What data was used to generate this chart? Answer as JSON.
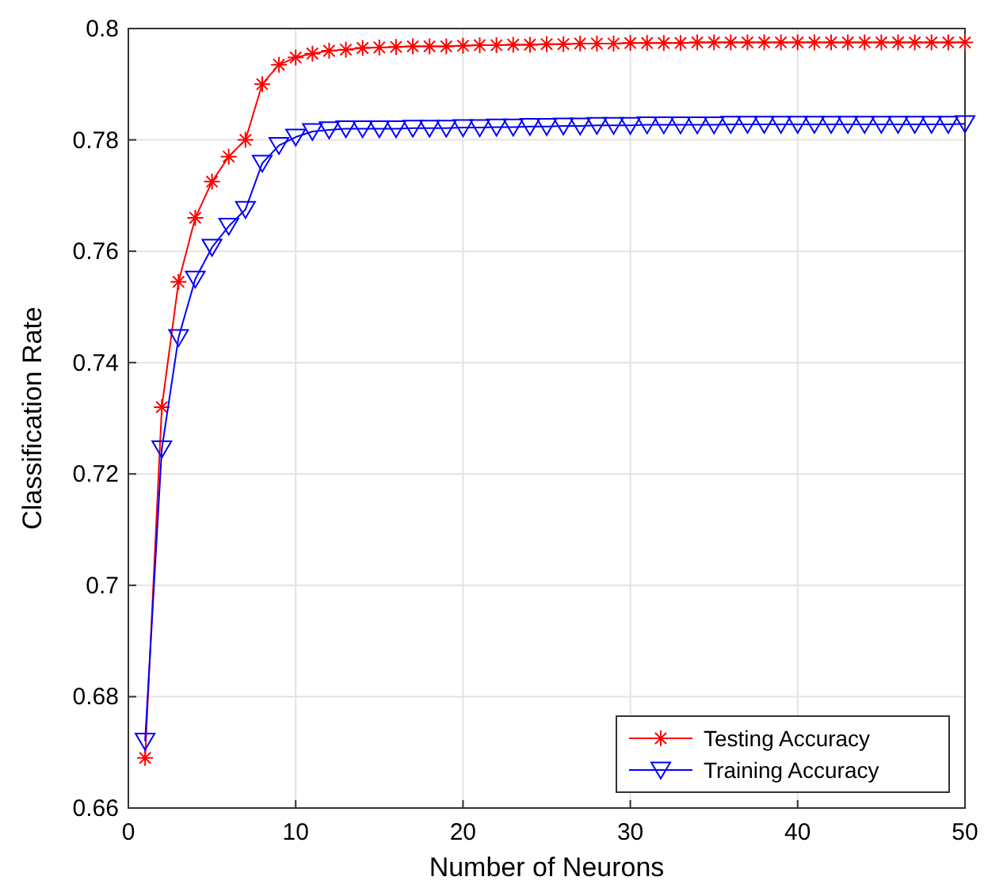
{
  "chart_data": {
    "type": "line",
    "xlabel": "Number of Neurons",
    "ylabel": "Classification Rate",
    "x": [
      1,
      2,
      3,
      4,
      5,
      6,
      7,
      8,
      9,
      10,
      11,
      12,
      13,
      14,
      15,
      16,
      17,
      18,
      19,
      20,
      21,
      22,
      23,
      24,
      25,
      26,
      27,
      28,
      29,
      30,
      31,
      32,
      33,
      34,
      35,
      36,
      37,
      38,
      39,
      40,
      41,
      42,
      43,
      44,
      45,
      46,
      47,
      48,
      49,
      50
    ],
    "series": [
      {
        "name": "Testing Accuracy",
        "color": "#ff0000",
        "marker": "cross",
        "values": [
          0.669,
          0.732,
          0.7545,
          0.766,
          0.7725,
          0.777,
          0.78,
          0.79,
          0.7935,
          0.7948,
          0.7955,
          0.796,
          0.7962,
          0.7965,
          0.7966,
          0.7967,
          0.7968,
          0.7968,
          0.7968,
          0.7969,
          0.797,
          0.797,
          0.7971,
          0.7971,
          0.7972,
          0.7972,
          0.7973,
          0.7973,
          0.7973,
          0.7974,
          0.7974,
          0.7974,
          0.7974,
          0.7975,
          0.7975,
          0.7975,
          0.7975,
          0.7975,
          0.7975,
          0.7975,
          0.7975,
          0.7975,
          0.7975,
          0.7975,
          0.7975,
          0.7975,
          0.7975,
          0.7975,
          0.7975,
          0.7975
        ]
      },
      {
        "name": "Training Accuracy",
        "color": "#0000ff",
        "marker": "triangle",
        "values": [
          0.672,
          0.7245,
          0.7445,
          0.755,
          0.7607,
          0.7645,
          0.7675,
          0.7758,
          0.779,
          0.7805,
          0.7815,
          0.7818,
          0.782,
          0.782,
          0.782,
          0.782,
          0.7821,
          0.7821,
          0.7821,
          0.7822,
          0.7822,
          0.7823,
          0.7823,
          0.7824,
          0.7824,
          0.7825,
          0.7825,
          0.7826,
          0.7826,
          0.7826,
          0.7827,
          0.7827,
          0.7827,
          0.7827,
          0.7827,
          0.7828,
          0.7828,
          0.7828,
          0.7828,
          0.7828,
          0.7828,
          0.7828,
          0.7828,
          0.7828,
          0.7828,
          0.7828,
          0.7828,
          0.7828,
          0.7828,
          0.7829
        ]
      }
    ],
    "xlim": [
      0,
      50
    ],
    "xticks": [
      0,
      10,
      20,
      30,
      40,
      50
    ],
    "ylim": [
      0.66,
      0.8
    ],
    "yticks": [
      0.66,
      0.68,
      0.7,
      0.72,
      0.74,
      0.76,
      0.78,
      0.8
    ],
    "grid": true,
    "legend": "bottom right",
    "line_style": "solid"
  }
}
